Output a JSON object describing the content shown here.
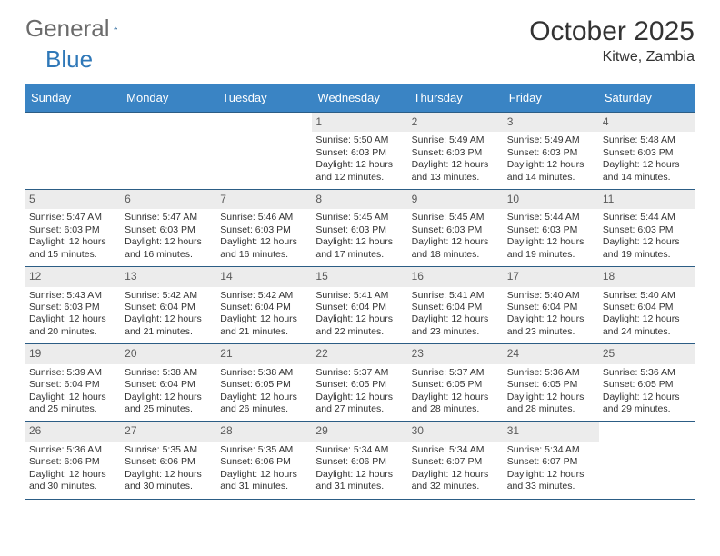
{
  "logo": {
    "word1": "General",
    "word2": "Blue"
  },
  "header": {
    "title": "October 2025",
    "location": "Kitwe, Zambia"
  },
  "colors": {
    "header_bg": "#3a84c4",
    "header_text": "#ffffff",
    "row_border": "#2c5d85",
    "daynum_bg": "#ececec",
    "daynum_text": "#5a5a5a",
    "body_text": "#333333",
    "logo_gray": "#6b6b6b",
    "logo_blue": "#2f78b8"
  },
  "day_headers": [
    "Sunday",
    "Monday",
    "Tuesday",
    "Wednesday",
    "Thursday",
    "Friday",
    "Saturday"
  ],
  "weeks": [
    [
      {
        "empty": true
      },
      {
        "empty": true
      },
      {
        "empty": true
      },
      {
        "day": "1",
        "sunrise": "5:50 AM",
        "sunset": "6:03 PM",
        "daylight": "12 hours and 12 minutes."
      },
      {
        "day": "2",
        "sunrise": "5:49 AM",
        "sunset": "6:03 PM",
        "daylight": "12 hours and 13 minutes."
      },
      {
        "day": "3",
        "sunrise": "5:49 AM",
        "sunset": "6:03 PM",
        "daylight": "12 hours and 14 minutes."
      },
      {
        "day": "4",
        "sunrise": "5:48 AM",
        "sunset": "6:03 PM",
        "daylight": "12 hours and 14 minutes."
      }
    ],
    [
      {
        "day": "5",
        "sunrise": "5:47 AM",
        "sunset": "6:03 PM",
        "daylight": "12 hours and 15 minutes."
      },
      {
        "day": "6",
        "sunrise": "5:47 AM",
        "sunset": "6:03 PM",
        "daylight": "12 hours and 16 minutes."
      },
      {
        "day": "7",
        "sunrise": "5:46 AM",
        "sunset": "6:03 PM",
        "daylight": "12 hours and 16 minutes."
      },
      {
        "day": "8",
        "sunrise": "5:45 AM",
        "sunset": "6:03 PM",
        "daylight": "12 hours and 17 minutes."
      },
      {
        "day": "9",
        "sunrise": "5:45 AM",
        "sunset": "6:03 PM",
        "daylight": "12 hours and 18 minutes."
      },
      {
        "day": "10",
        "sunrise": "5:44 AM",
        "sunset": "6:03 PM",
        "daylight": "12 hours and 19 minutes."
      },
      {
        "day": "11",
        "sunrise": "5:44 AM",
        "sunset": "6:03 PM",
        "daylight": "12 hours and 19 minutes."
      }
    ],
    [
      {
        "day": "12",
        "sunrise": "5:43 AM",
        "sunset": "6:03 PM",
        "daylight": "12 hours and 20 minutes."
      },
      {
        "day": "13",
        "sunrise": "5:42 AM",
        "sunset": "6:04 PM",
        "daylight": "12 hours and 21 minutes."
      },
      {
        "day": "14",
        "sunrise": "5:42 AM",
        "sunset": "6:04 PM",
        "daylight": "12 hours and 21 minutes."
      },
      {
        "day": "15",
        "sunrise": "5:41 AM",
        "sunset": "6:04 PM",
        "daylight": "12 hours and 22 minutes."
      },
      {
        "day": "16",
        "sunrise": "5:41 AM",
        "sunset": "6:04 PM",
        "daylight": "12 hours and 23 minutes."
      },
      {
        "day": "17",
        "sunrise": "5:40 AM",
        "sunset": "6:04 PM",
        "daylight": "12 hours and 23 minutes."
      },
      {
        "day": "18",
        "sunrise": "5:40 AM",
        "sunset": "6:04 PM",
        "daylight": "12 hours and 24 minutes."
      }
    ],
    [
      {
        "day": "19",
        "sunrise": "5:39 AM",
        "sunset": "6:04 PM",
        "daylight": "12 hours and 25 minutes."
      },
      {
        "day": "20",
        "sunrise": "5:38 AM",
        "sunset": "6:04 PM",
        "daylight": "12 hours and 25 minutes."
      },
      {
        "day": "21",
        "sunrise": "5:38 AM",
        "sunset": "6:05 PM",
        "daylight": "12 hours and 26 minutes."
      },
      {
        "day": "22",
        "sunrise": "5:37 AM",
        "sunset": "6:05 PM",
        "daylight": "12 hours and 27 minutes."
      },
      {
        "day": "23",
        "sunrise": "5:37 AM",
        "sunset": "6:05 PM",
        "daylight": "12 hours and 28 minutes."
      },
      {
        "day": "24",
        "sunrise": "5:36 AM",
        "sunset": "6:05 PM",
        "daylight": "12 hours and 28 minutes."
      },
      {
        "day": "25",
        "sunrise": "5:36 AM",
        "sunset": "6:05 PM",
        "daylight": "12 hours and 29 minutes."
      }
    ],
    [
      {
        "day": "26",
        "sunrise": "5:36 AM",
        "sunset": "6:06 PM",
        "daylight": "12 hours and 30 minutes."
      },
      {
        "day": "27",
        "sunrise": "5:35 AM",
        "sunset": "6:06 PM",
        "daylight": "12 hours and 30 minutes."
      },
      {
        "day": "28",
        "sunrise": "5:35 AM",
        "sunset": "6:06 PM",
        "daylight": "12 hours and 31 minutes."
      },
      {
        "day": "29",
        "sunrise": "5:34 AM",
        "sunset": "6:06 PM",
        "daylight": "12 hours and 31 minutes."
      },
      {
        "day": "30",
        "sunrise": "5:34 AM",
        "sunset": "6:07 PM",
        "daylight": "12 hours and 32 minutes."
      },
      {
        "day": "31",
        "sunrise": "5:34 AM",
        "sunset": "6:07 PM",
        "daylight": "12 hours and 33 minutes."
      },
      {
        "empty": true
      }
    ]
  ],
  "labels": {
    "sunrise": "Sunrise: ",
    "sunset": "Sunset: ",
    "daylight": "Daylight: "
  }
}
